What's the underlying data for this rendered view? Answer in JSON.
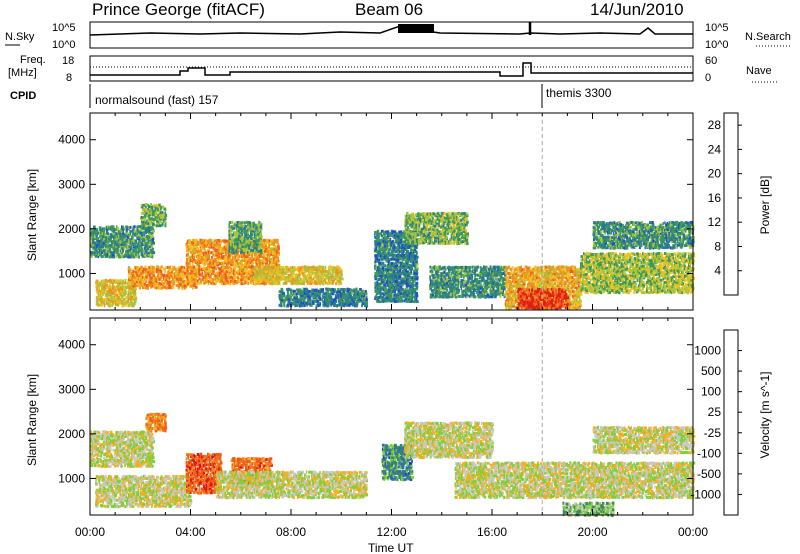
{
  "header": {
    "site": "Prince George (fitACF)",
    "beam": "Beam 06",
    "date": "14/Jun/2010"
  },
  "panels": {
    "nsky_label": "N.Sky",
    "nsky_ticks": [
      "10^5",
      "10^0"
    ],
    "nsearch_label": "N.Search",
    "nsearch_ticks": [
      "10^5",
      "10^0"
    ],
    "freq_label_1": "Freq.",
    "freq_label_2": "[MHz]",
    "freq_ticks": [
      "18",
      "8"
    ],
    "nave_label": "Nave",
    "nave_ticks": [
      "60",
      "0"
    ],
    "cpid_label": "CPID",
    "cpid_segments": [
      {
        "name": "normalsound (fast) 157",
        "start_h": 0
      },
      {
        "name": "themis 3300",
        "start_h": 18
      }
    ]
  },
  "chart_data": [
    {
      "type": "heatmap",
      "title": "",
      "xlabel": "Time UT",
      "ylabel": "Slant Range [km]",
      "x_ticks": [
        "00:00",
        "04:00",
        "08:00",
        "12:00",
        "16:00",
        "20:00",
        "00:00"
      ],
      "x_range_hours": [
        0,
        24
      ],
      "y_ticks": [
        1000,
        2000,
        3000,
        4000
      ],
      "ylim": [
        180,
        4600
      ],
      "colorbar_label": "Power [dB]",
      "colorbar_ticks": [
        4,
        8,
        12,
        16,
        20,
        24,
        28
      ],
      "colorbar_range": [
        0,
        30
      ],
      "colors": [
        "#0000e0",
        "#1e50c8",
        "#2a7d8c",
        "#3f9a5a",
        "#a6c43c",
        "#f0c020",
        "#f09020",
        "#f05a1e",
        "#e01e14"
      ],
      "regions": [
        {
          "t0": 0.0,
          "t1": 2.5,
          "r0": 1400,
          "r1": 2100,
          "level": 0.35
        },
        {
          "t0": 0.2,
          "t1": 1.8,
          "r0": 300,
          "r1": 900,
          "level": 0.6
        },
        {
          "t0": 1.5,
          "t1": 4.2,
          "r0": 700,
          "r1": 1200,
          "level": 0.7
        },
        {
          "t0": 2.0,
          "t1": 3.0,
          "r0": 2100,
          "r1": 2600,
          "level": 0.45
        },
        {
          "t0": 3.8,
          "t1": 7.5,
          "r0": 800,
          "r1": 1800,
          "level": 0.7
        },
        {
          "t0": 5.5,
          "t1": 6.8,
          "r0": 1500,
          "r1": 2200,
          "level": 0.4
        },
        {
          "t0": 6.5,
          "t1": 10.0,
          "r0": 800,
          "r1": 1200,
          "level": 0.6
        },
        {
          "t0": 7.5,
          "t1": 11.0,
          "r0": 300,
          "r1": 700,
          "level": 0.3
        },
        {
          "t0": 11.3,
          "t1": 13.0,
          "r0": 400,
          "r1": 2000,
          "level": 0.3
        },
        {
          "t0": 12.5,
          "t1": 15.0,
          "r0": 1700,
          "r1": 2400,
          "level": 0.45
        },
        {
          "t0": 13.5,
          "t1": 16.5,
          "r0": 500,
          "r1": 1200,
          "level": 0.35
        },
        {
          "t0": 16.5,
          "t1": 19.5,
          "r0": 250,
          "r1": 1200,
          "level": 0.65
        },
        {
          "t0": 17.0,
          "t1": 19.0,
          "r0": 250,
          "r1": 700,
          "level": 0.9
        },
        {
          "t0": 19.5,
          "t1": 24.0,
          "r0": 600,
          "r1": 1500,
          "level": 0.5
        },
        {
          "t0": 20.0,
          "t1": 24.0,
          "r0": 1600,
          "r1": 2200,
          "level": 0.35
        }
      ]
    },
    {
      "type": "heatmap",
      "title": "",
      "xlabel": "Time UT",
      "ylabel": "Slant Range [km]",
      "x_ticks": [
        "00:00",
        "04:00",
        "08:00",
        "12:00",
        "16:00",
        "20:00",
        "00:00"
      ],
      "x_range_hours": [
        0,
        24
      ],
      "y_ticks": [
        1000,
        2000,
        3000,
        4000
      ],
      "ylim": [
        180,
        4600
      ],
      "colorbar_label": "Velocity [m s^-1]",
      "colorbar_ticks": [
        "1000",
        "500",
        "100",
        "25",
        "-25",
        "-100",
        "-500",
        "-1000"
      ],
      "colors": [
        "#1e32c8",
        "#3070b8",
        "#3c8a5a",
        "#7fcf3c",
        "#c8c8c0",
        "#f0b020",
        "#f08020",
        "#f05a14",
        "#e01414"
      ],
      "regions": [
        {
          "t0": 0.0,
          "t1": 2.5,
          "r0": 1300,
          "r1": 2100,
          "level": 0.5
        },
        {
          "t0": 0.2,
          "t1": 4.0,
          "r0": 400,
          "r1": 1100,
          "level": 0.5
        },
        {
          "t0": 2.2,
          "t1": 3.0,
          "r0": 2100,
          "r1": 2500,
          "level": 0.72
        },
        {
          "t0": 3.8,
          "t1": 5.2,
          "r0": 700,
          "r1": 1600,
          "level": 0.82
        },
        {
          "t0": 5.6,
          "t1": 7.2,
          "r0": 900,
          "r1": 1500,
          "level": 0.78
        },
        {
          "t0": 5.0,
          "t1": 11.0,
          "r0": 600,
          "r1": 1200,
          "level": 0.5
        },
        {
          "t0": 11.6,
          "t1": 12.8,
          "r0": 1000,
          "r1": 1800,
          "level": 0.25
        },
        {
          "t0": 12.5,
          "t1": 16.0,
          "r0": 1500,
          "r1": 2300,
          "level": 0.5
        },
        {
          "t0": 14.5,
          "t1": 24.0,
          "r0": 600,
          "r1": 1400,
          "level": 0.5
        },
        {
          "t0": 18.8,
          "t1": 20.8,
          "r0": 200,
          "r1": 500,
          "level": 0.38
        },
        {
          "t0": 20.0,
          "t1": 24.0,
          "r0": 1600,
          "r1": 2200,
          "level": 0.5
        }
      ]
    }
  ]
}
